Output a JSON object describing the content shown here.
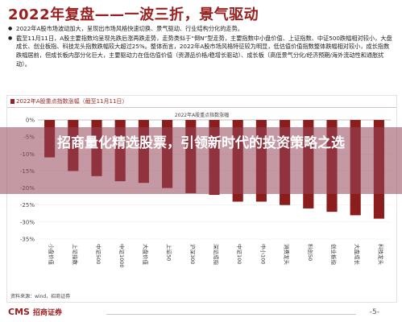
{
  "page": {
    "title": "2022年复盘——一波三折，景气驱动",
    "bullets": [
      "2022年A股市场波动加大，呈现出市场风格快速切换、景气驱动、行业结构分化的走势。",
      "截至11月11日，A股主要指数均呈现先跌后涨再跌走势，走势类似于“倒N”型走势，主要指数中小盘价值、上证指数、中证500跌幅相对较小，大盘成长、创业板指、科技龙头指数跌幅较大超过25%。整体而言，2022年A股市场风格特征较为明显，低估值价值指数整体跌幅相对较小，成长指数跌幅居前，但成长板内部分化巨大，主要驱动力在低估值价值（资源品价格/稳增长驱动）、成长板（高低景气分化/经济预期/海外流动性和通胀扰动）。"
    ],
    "overlay_headline": "招商量化精选股票，引领新时代的投资策略之选",
    "footer": {
      "logo_en": "CMS",
      "logo_cn": "招商证券",
      "page_number": "-5-"
    }
  },
  "chart_data": {
    "type": "bar",
    "header_label": "2022年A股重点指数涨幅（截至11月11日）",
    "title": "2022年A股重点指数涨幅",
    "source": "资料来源：wind，招商证券",
    "categories": [
      "小盘价值",
      "上证指数",
      "中证500",
      "中证1000",
      "大盘价值",
      "上证50",
      "沪深300",
      "深证成指",
      "中证100",
      "中小100",
      "消费龙头",
      "科创50",
      "创业板指",
      "大盘成长",
      "科技龙头"
    ],
    "values": [
      -11,
      -15,
      -16.5,
      -18,
      -18.5,
      -20,
      -21.5,
      -22,
      -24,
      -24,
      -25,
      -26,
      -27,
      -28,
      -29
    ],
    "ylim": [
      -35,
      0
    ],
    "yticks": [
      "0%",
      "-5%",
      "-10%",
      "-15%",
      "-20%",
      "-25%",
      "-30%",
      "-35%"
    ],
    "color": "#8b1d1d"
  }
}
